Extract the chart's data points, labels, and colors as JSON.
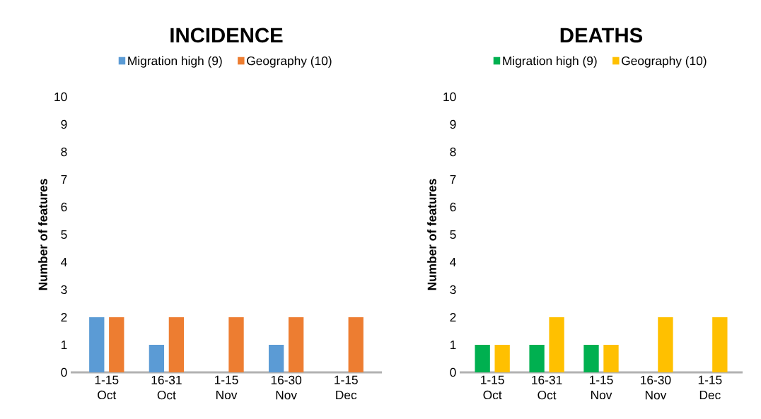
{
  "chart_data": [
    {
      "type": "bar",
      "title": "INCIDENCE",
      "ylabel": "Number of features",
      "categories": [
        "1-15 Oct",
        "16-31 Oct",
        "1-15 Nov",
        "16-30 Nov",
        "1-15 Dec"
      ],
      "series": [
        {
          "name": "Migration high (9)",
          "color": "#5b9bd5",
          "values": [
            2,
            1,
            0,
            1,
            0
          ]
        },
        {
          "name": "Geography (10)",
          "color": "#ed7d31",
          "values": [
            2,
            2,
            2,
            2,
            2
          ]
        }
      ],
      "ylim": [
        0,
        10
      ],
      "yticks": [
        0,
        1,
        2,
        3,
        4,
        5,
        6,
        7,
        8,
        9,
        10
      ],
      "legend": "top"
    },
    {
      "type": "bar",
      "title": "DEATHS",
      "ylabel": "Number of features",
      "categories": [
        "1-15 Oct",
        "16-31 Oct",
        "1-15 Nov",
        "16-30 Nov",
        "1-15 Dec"
      ],
      "series": [
        {
          "name": "Migration high (9)",
          "color": "#00b050",
          "values": [
            1,
            1,
            1,
            0,
            0
          ]
        },
        {
          "name": "Geography (10)",
          "color": "#ffc000",
          "values": [
            1,
            2,
            1,
            2,
            2
          ]
        }
      ],
      "ylim": [
        0,
        10
      ],
      "yticks": [
        0,
        1,
        2,
        3,
        4,
        5,
        6,
        7,
        8,
        9,
        10
      ],
      "legend": "top"
    }
  ]
}
